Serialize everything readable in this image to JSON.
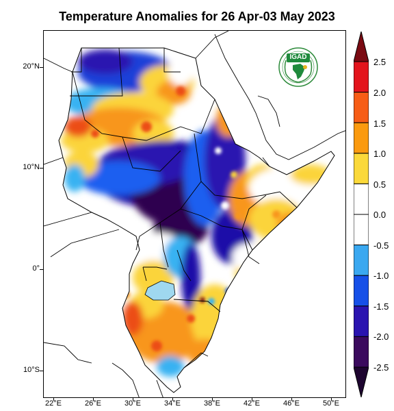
{
  "title": "Temperature Anomalies for 26 Apr-03 May 2023",
  "map": {
    "lat_labels": [
      "20°N",
      "10°N",
      "0°",
      "10°S"
    ],
    "lon_labels": [
      "22°E",
      "26°E",
      "30°E",
      "34°E",
      "38°E",
      "42°E",
      "46°E",
      "50°E"
    ],
    "extent": {
      "lon_min": 21,
      "lon_max": 51.5,
      "lat_min": -11.5,
      "lat_max": 23
    },
    "lat_ticks": [
      20,
      10,
      0,
      -10
    ],
    "lon_ticks": [
      22,
      26,
      30,
      34,
      38,
      42,
      46,
      50
    ],
    "logo": {
      "text": "IGAD",
      "icon": "igad-emblem-icon"
    }
  },
  "colorbar": {
    "labels": [
      "2.5",
      "2.0",
      "1.5",
      "1.0",
      "0.5",
      "0.0",
      "-0.5",
      "-1.0",
      "-1.5",
      "-2.0",
      "-2.5"
    ],
    "colors": [
      "#7a0a12",
      "#e3141c",
      "#f75d16",
      "#fb9a0f",
      "#fbd93a",
      "#ffffff",
      "#ffffff",
      "#3aa8f0",
      "#1650e8",
      "#2a14b0",
      "#3b0a5e",
      "#1e0530"
    ],
    "shape": "triangular-ends"
  },
  "colors": {
    "cold_extreme": "#2d0550",
    "cold_strong": "#1c10a8",
    "cold": "#1b5ef0",
    "cool": "#38b2f2",
    "neutral": "#ffffff",
    "warm": "#fbd43a",
    "hot": "#f8961a",
    "hot_strong": "#ec4e16",
    "lake": "#9fd8ef"
  }
}
